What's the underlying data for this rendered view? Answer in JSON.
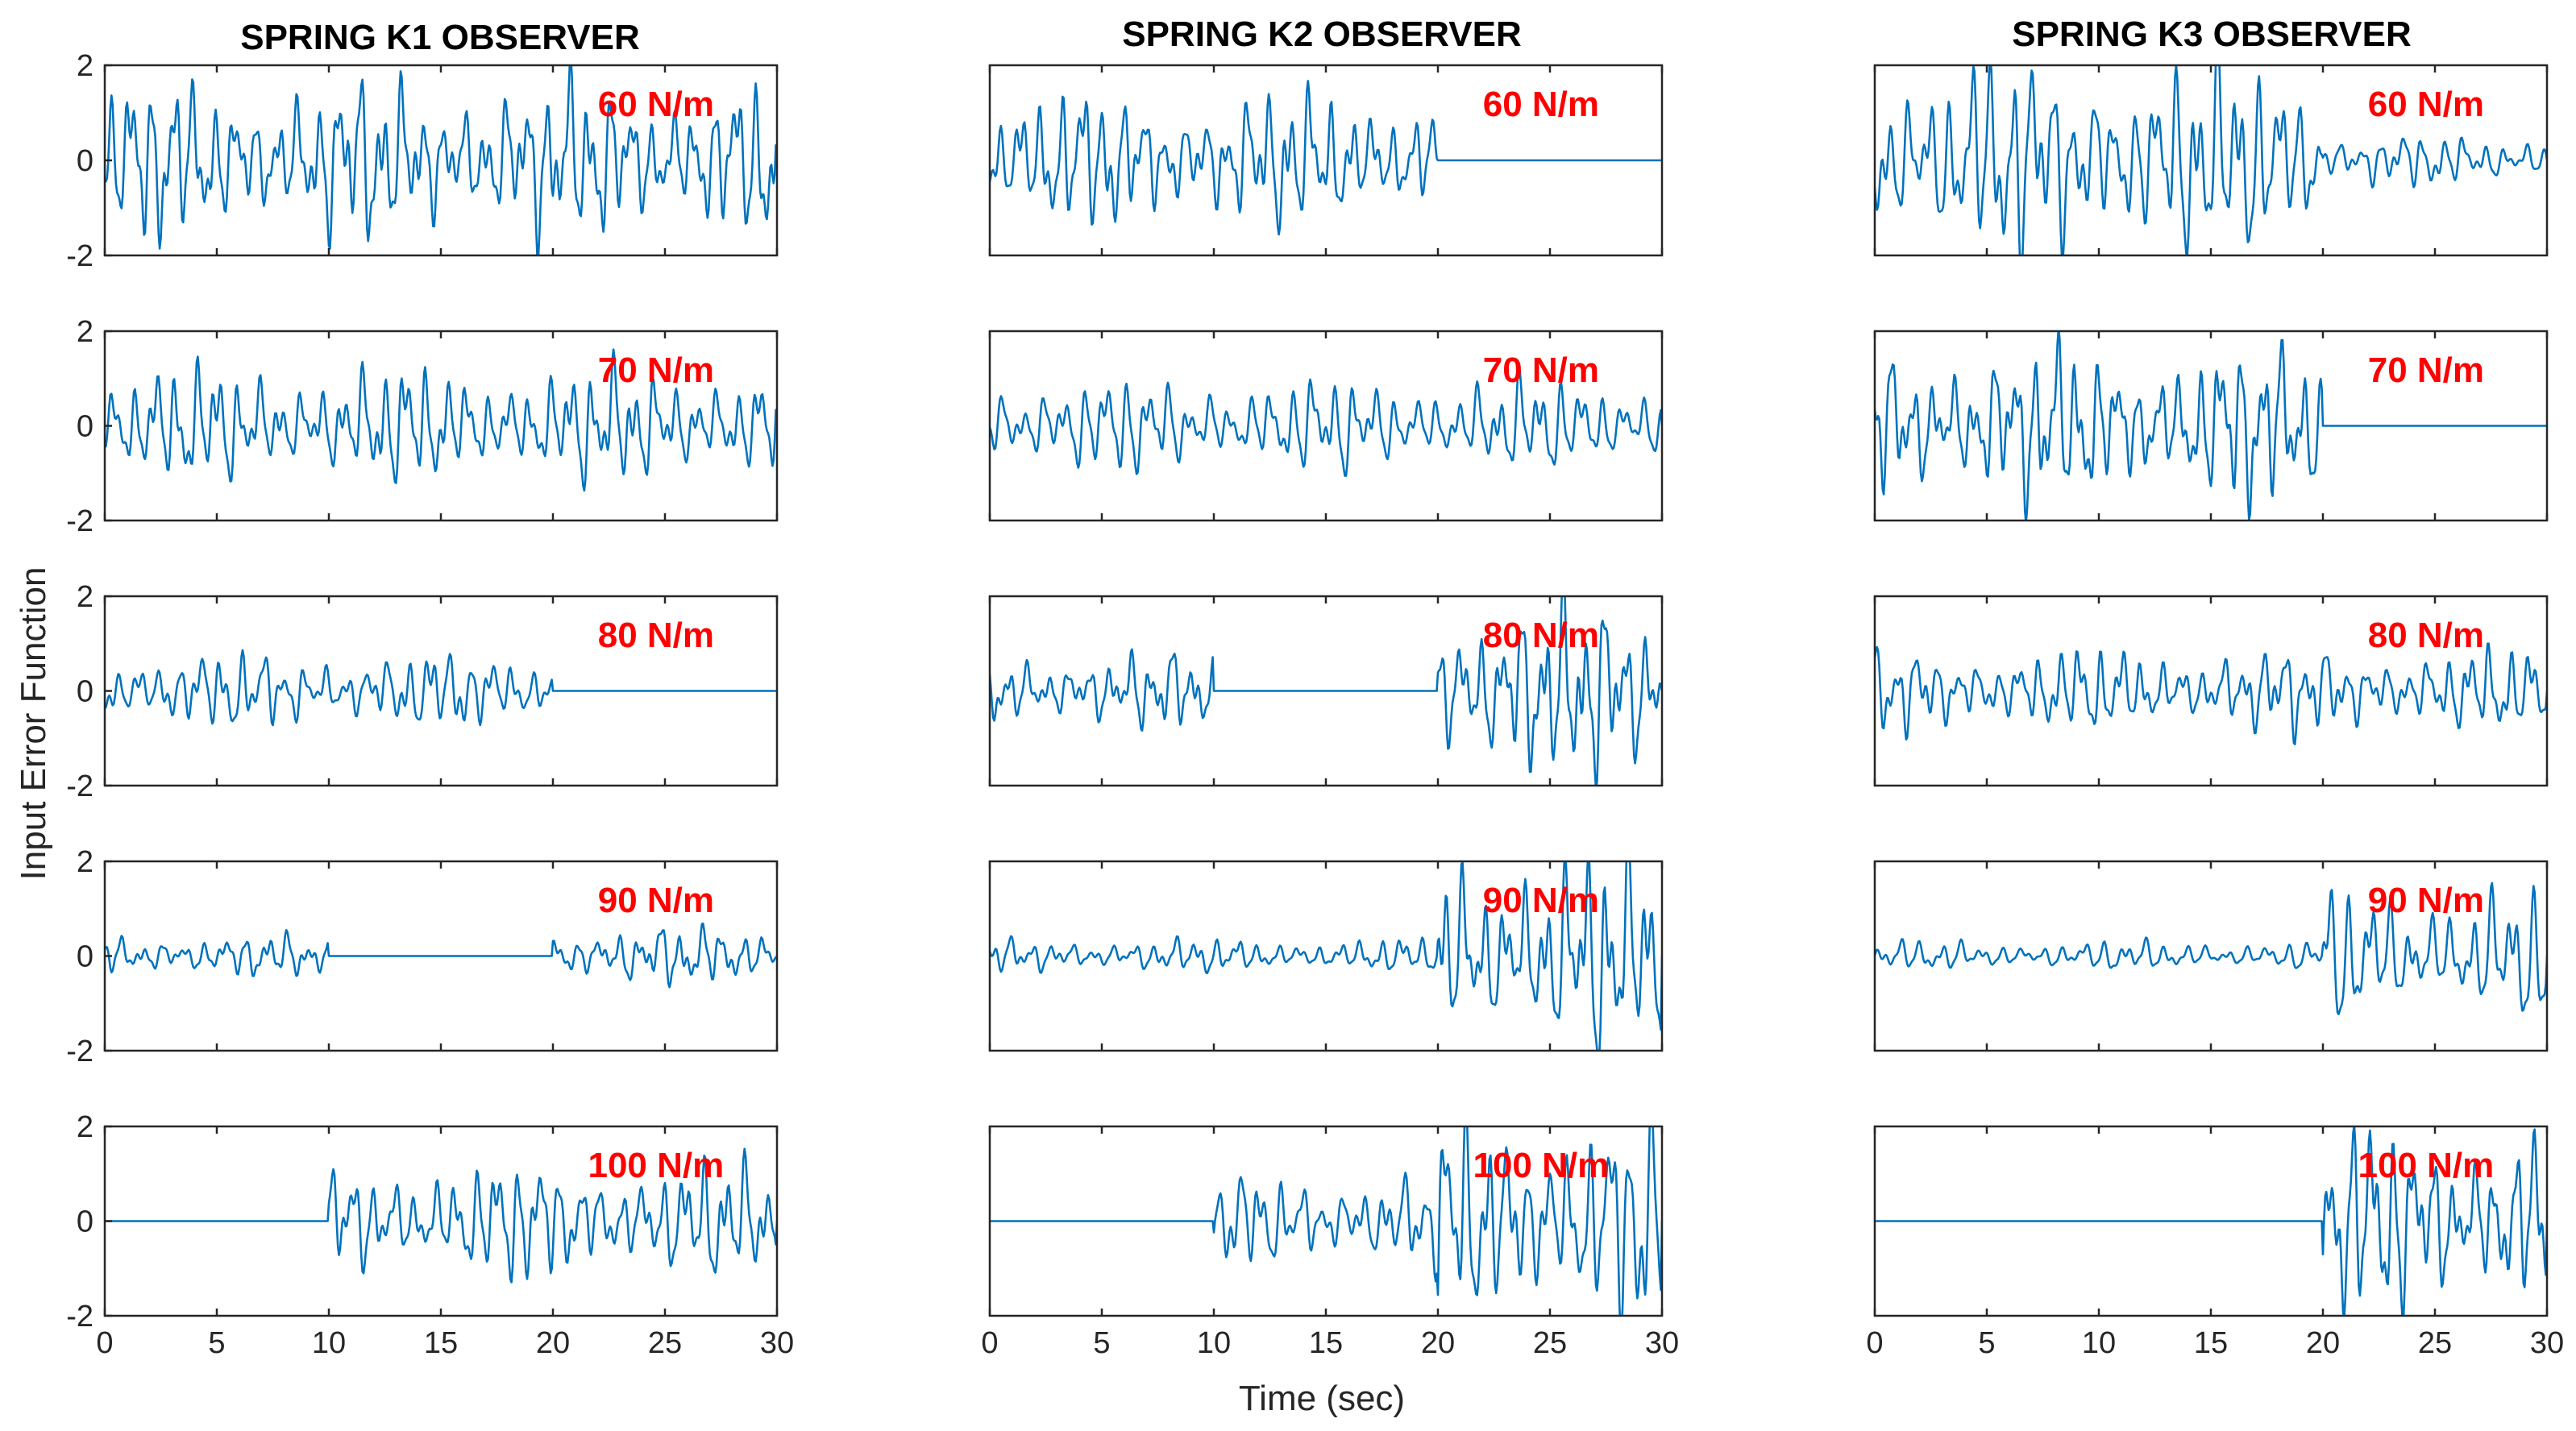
{
  "chart_data": {
    "type": "line",
    "layout": "grid 5 rows x 3 columns",
    "column_titles": [
      "SPRING K1 OBSERVER",
      "SPRING K2 OBSERVER",
      "SPRING K3 OBSERVER"
    ],
    "row_labels": [
      "60 N/m",
      "70 N/m",
      "80 N/m",
      "90 N/m",
      "100 N/m"
    ],
    "xlabel": "Time (sec)",
    "ylabel": "Input Error Function",
    "xlim": [
      0,
      30
    ],
    "ylim": [
      -2,
      2
    ],
    "xticks": [
      "0",
      "5",
      "10",
      "15",
      "20",
      "25",
      "30"
    ],
    "yticks": [
      "-2",
      "0",
      "2"
    ],
    "colors": {
      "line": "#0072BD",
      "annotation": "#FF0000",
      "axes": "#262626"
    },
    "time_step": 0.05,
    "segments_description": "Each panel: list of time intervals [t0, t1, peak_amplitude]; signal is zero outside the listed intervals.",
    "panels": [
      [
        {
          "label": "60 N/m",
          "segments": [
            [
              0,
              30,
              1.9
            ]
          ]
        },
        {
          "label": "70 N/m",
          "segments": [
            [
              0,
              30,
              1.4
            ]
          ]
        },
        {
          "label": "80 N/m",
          "segments": [
            [
              0,
              20,
              0.9
            ]
          ]
        },
        {
          "label": "90 N/m",
          "segments": [
            [
              0,
              10,
              0.5
            ],
            [
              20,
              30,
              0.7
            ]
          ]
        },
        {
          "label": "100 N/m",
          "segments": [
            [
              10,
              30,
              1.4
            ]
          ]
        }
      ],
      [
        {
          "label": "60 N/m",
          "segments": [
            [
              0,
              20,
              1.6
            ]
          ]
        },
        {
          "label": "70 N/m",
          "segments": [
            [
              0,
              30,
              1.1
            ]
          ]
        },
        {
          "label": "80 N/m",
          "segments": [
            [
              0,
              10,
              0.9
            ],
            [
              20,
              30,
              2.2
            ]
          ]
        },
        {
          "label": "90 N/m",
          "segments": [
            [
              0,
              20,
              0.4
            ],
            [
              20,
              30,
              2.5
            ]
          ]
        },
        {
          "label": "100 N/m",
          "segments": [
            [
              10,
              20,
              1.1
            ],
            [
              20,
              30,
              2.6
            ]
          ]
        }
      ],
      [
        {
          "label": "60 N/m",
          "segments": [
            [
              0,
              20,
              2.4
            ],
            [
              20,
              30,
              0.6
            ]
          ]
        },
        {
          "label": "70 N/m",
          "segments": [
            [
              0,
              20,
              1.9
            ]
          ]
        },
        {
          "label": "80 N/m",
          "segments": [
            [
              0,
              30,
              1.0
            ]
          ]
        },
        {
          "label": "90 N/m",
          "segments": [
            [
              0,
              20,
              0.35
            ],
            [
              20,
              30,
              1.6
            ]
          ]
        },
        {
          "label": "100 N/m",
          "segments": [
            [
              20,
              30,
              2.3
            ]
          ]
        }
      ]
    ]
  }
}
